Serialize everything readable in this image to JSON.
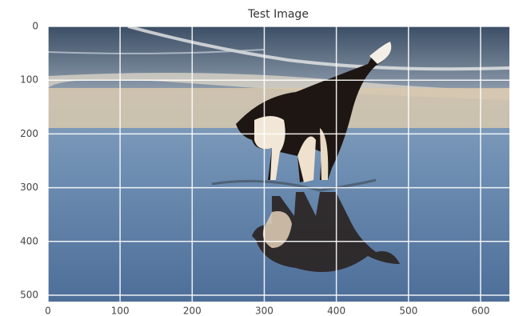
{
  "chart_data": {
    "type": "image",
    "title": "Test Image",
    "xlim": [
      0,
      640
    ],
    "ylim": [
      512,
      0
    ],
    "xticks": [
      0,
      100,
      200,
      300,
      400,
      500,
      600
    ],
    "yticks": [
      0,
      100,
      200,
      300,
      400,
      500
    ],
    "grid": true
  }
}
